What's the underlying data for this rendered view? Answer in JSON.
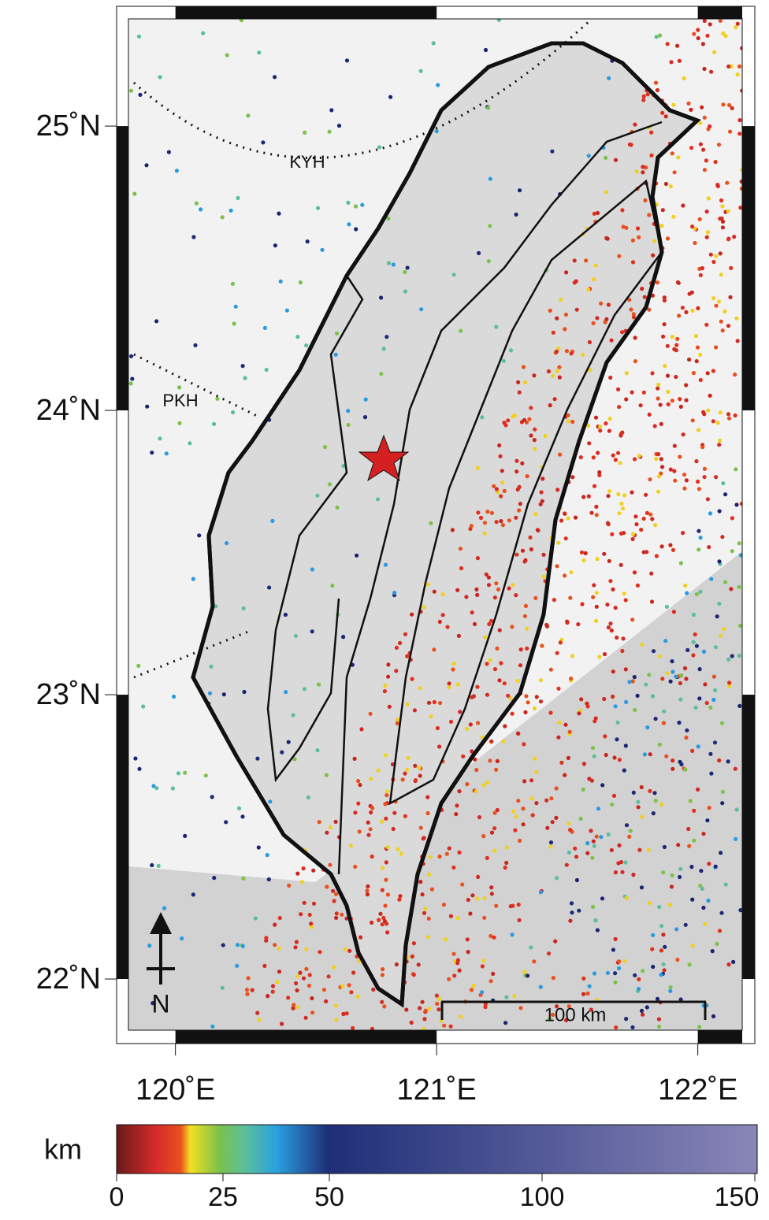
{
  "map": {
    "xlim": [
      119.82,
      122.17
    ],
    "ylim": [
      21.82,
      25.377
    ],
    "xticks": [
      {
        "value": 120,
        "label": "120˚E"
      },
      {
        "value": 121,
        "label": "121˚E"
      },
      {
        "value": 122,
        "label": "122˚E"
      }
    ],
    "yticks": [
      {
        "value": 25,
        "label": "25˚N"
      },
      {
        "value": 24,
        "label": "24˚N"
      },
      {
        "value": 23,
        "label": "23˚N"
      },
      {
        "value": 22,
        "label": "22˚N"
      }
    ],
    "kyh": "KYH",
    "pkh": "PKH",
    "scale_bar": "100 km",
    "north": "N"
  },
  "colorbar": {
    "unit": "km",
    "xlim": [
      0,
      150
    ],
    "ticks": [
      0,
      25,
      50,
      100,
      150
    ]
  }
}
